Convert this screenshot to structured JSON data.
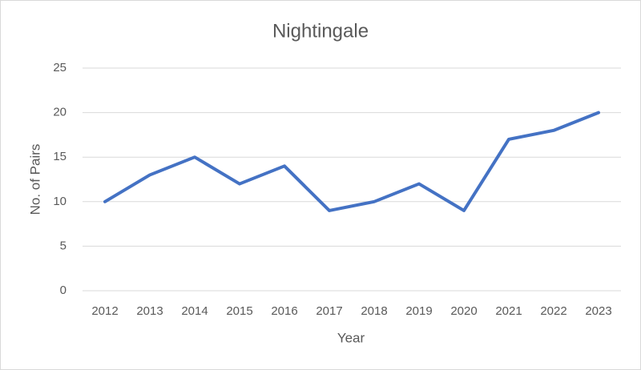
{
  "chart_data": {
    "type": "line",
    "title": "Nightingale",
    "x_label": "Year",
    "y_label": "No. of Pairs",
    "categories": [
      "2012",
      "2013",
      "2014",
      "2015",
      "2016",
      "2017",
      "2018",
      "2019",
      "2020",
      "2021",
      "2022",
      "2023"
    ],
    "series": [
      {
        "name": "Nightingale",
        "color": "#4472c4",
        "values": [
          10,
          13,
          15,
          12,
          14,
          9,
          10,
          12,
          9,
          17,
          18,
          20
        ]
      }
    ],
    "ylim": [
      0,
      25
    ],
    "yticks": [
      0,
      5,
      10,
      15,
      20,
      25
    ],
    "grid": true
  }
}
